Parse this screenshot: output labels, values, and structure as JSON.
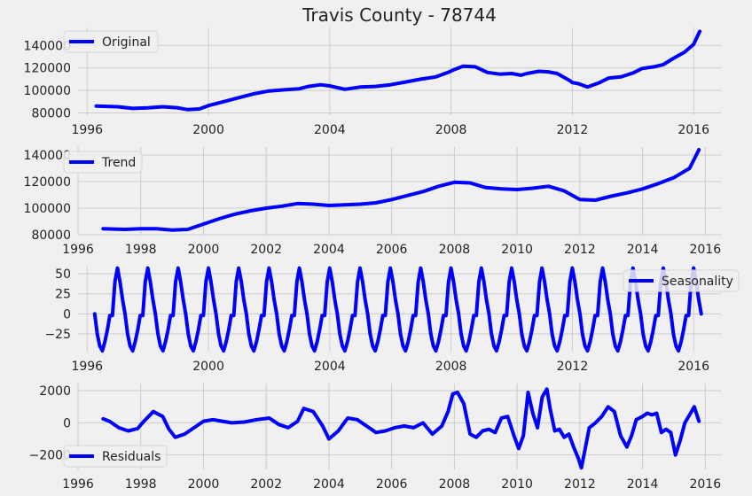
{
  "chart_data": [
    {
      "type": "line",
      "title": "Travis County - 78744",
      "legend": {
        "entries": [
          "Original"
        ],
        "placement": "upper-left"
      },
      "xlim": [
        1995.7,
        2016.9
      ],
      "ylim": [
        78000,
        156000
      ],
      "xticks": [
        1996,
        2000,
        2004,
        2008,
        2012,
        2016
      ],
      "yticks": [
        80000,
        100000,
        120000,
        140000
      ],
      "grid": true,
      "series": [
        {
          "name": "Original",
          "color": "#0000ff",
          "x": [
            1996.3,
            1997.0,
            1997.5,
            1998.0,
            1998.5,
            1999.0,
            1999.3,
            1999.7,
            2000.0,
            2000.5,
            2001.0,
            2001.5,
            2002.0,
            2002.5,
            2003.0,
            2003.3,
            2003.7,
            2004.0,
            2004.5,
            2005.0,
            2005.5,
            2006.0,
            2006.5,
            2007.0,
            2007.5,
            2007.9,
            2008.1,
            2008.4,
            2008.8,
            2009.2,
            2009.6,
            2010.0,
            2010.3,
            2010.5,
            2010.9,
            2011.2,
            2011.5,
            2011.9,
            2012.0,
            2012.2,
            2012.5,
            2012.9,
            2013.2,
            2013.6,
            2014.0,
            2014.3,
            2014.7,
            2015.0,
            2015.3,
            2015.7,
            2016.0,
            2016.2
          ],
          "values": [
            86000,
            85500,
            84000,
            84500,
            85500,
            84500,
            83000,
            83500,
            86500,
            90000,
            93500,
            97000,
            99500,
            100500,
            101500,
            103500,
            105000,
            104000,
            101000,
            103000,
            103500,
            105000,
            107500,
            110000,
            112000,
            116000,
            118500,
            121500,
            121000,
            116000,
            114500,
            115000,
            113500,
            115000,
            117000,
            116500,
            115000,
            109000,
            107000,
            106000,
            103000,
            107000,
            111000,
            112000,
            115500,
            119500,
            121000,
            123000,
            128000,
            134000,
            141000,
            152500
          ]
        }
      ]
    },
    {
      "type": "line",
      "legend": {
        "entries": [
          "Trend"
        ],
        "placement": "upper-left"
      },
      "xlim": [
        1996,
        2016.5
      ],
      "ylim": [
        80000,
        146000
      ],
      "xticks": [
        1996,
        1998,
        2000,
        2002,
        2004,
        2006,
        2008,
        2010,
        2012,
        2014,
        2016
      ],
      "yticks": [
        80000,
        100000,
        120000,
        140000
      ],
      "grid": true,
      "series": [
        {
          "name": "Trend",
          "color": "#0000ff",
          "x": [
            1996.8,
            1997.5,
            1998.0,
            1998.5,
            1999.0,
            1999.5,
            2000.0,
            2000.5,
            2001.0,
            2001.5,
            2002.0,
            2002.5,
            2003.0,
            2003.5,
            2004.0,
            2004.5,
            2005.0,
            2005.5,
            2006.0,
            2006.5,
            2007.0,
            2007.5,
            2008.0,
            2008.5,
            2009.0,
            2009.5,
            2010.0,
            2010.5,
            2011.0,
            2011.5,
            2012.0,
            2012.5,
            2013.0,
            2013.5,
            2014.0,
            2014.5,
            2015.0,
            2015.5,
            2015.8
          ],
          "values": [
            84500,
            84000,
            84500,
            84500,
            83500,
            84000,
            88000,
            92000,
            95500,
            98000,
            100000,
            101500,
            103500,
            103000,
            102000,
            102500,
            103000,
            104000,
            106500,
            109500,
            112500,
            116500,
            119500,
            119000,
            115500,
            114500,
            114000,
            115000,
            116500,
            113000,
            106500,
            106000,
            109000,
            111500,
            114500,
            118500,
            123000,
            130000,
            144000
          ]
        }
      ]
    },
    {
      "type": "line",
      "legend": {
        "entries": [
          "Seasonality"
        ],
        "placement": "upper-right"
      },
      "xlim": [
        1995.7,
        2016.9
      ],
      "ylim": [
        -47,
        60
      ],
      "xticks": [
        1996,
        2000,
        2004,
        2008,
        2012,
        2016
      ],
      "yticks": [
        -25,
        0,
        25,
        50
      ],
      "grid": true,
      "series": [
        {
          "name": "Seasonality",
          "color": "#0000ff",
          "start": 1996.25,
          "end": 2016.25,
          "period": 1,
          "pattern": [
            0,
            -25,
            -40,
            -46,
            -35,
            -20,
            -2,
            -2,
            40,
            57,
            40,
            18
          ]
        }
      ]
    },
    {
      "type": "line",
      "legend": {
        "entries": [
          "Residuals"
        ],
        "placement": "lower-left"
      },
      "xlim": [
        1996,
        2016.5
      ],
      "ylim": [
        -2900,
        2450
      ],
      "xticks": [
        1996,
        1998,
        2000,
        2002,
        2004,
        2006,
        2008,
        2010,
        2012,
        2014,
        2016
      ],
      "yticks": [
        -2000,
        0,
        2000
      ],
      "grid": true,
      "series": [
        {
          "name": "Residuals",
          "color": "#0000ff",
          "x": [
            1996.8,
            1997.0,
            1997.3,
            1997.6,
            1997.9,
            1998.1,
            1998.4,
            1998.7,
            1998.9,
            1999.1,
            1999.4,
            1999.7,
            2000.0,
            2000.3,
            2000.6,
            2000.9,
            2001.3,
            2001.7,
            2002.1,
            2002.4,
            2002.7,
            2003.0,
            2003.2,
            2003.5,
            2003.8,
            2004.0,
            2004.3,
            2004.6,
            2004.9,
            2005.2,
            2005.5,
            2005.8,
            2006.1,
            2006.4,
            2006.7,
            2007.0,
            2007.3,
            2007.6,
            2007.8,
            2007.95,
            2008.1,
            2008.3,
            2008.5,
            2008.7,
            2008.9,
            2009.1,
            2009.3,
            2009.5,
            2009.7,
            2009.9,
            2010.05,
            2010.2,
            2010.35,
            2010.5,
            2010.65,
            2010.8,
            2010.95,
            2011.05,
            2011.2,
            2011.35,
            2011.5,
            2011.65,
            2011.8,
            2011.95,
            2012.05,
            2012.15,
            2012.3,
            2012.5,
            2012.7,
            2012.9,
            2013.1,
            2013.3,
            2013.5,
            2013.65,
            2013.8,
            2014.0,
            2014.15,
            2014.3,
            2014.45,
            2014.6,
            2014.75,
            2014.9,
            2015.05,
            2015.2,
            2015.35,
            2015.5,
            2015.65,
            2015.8
          ],
          "values": [
            250,
            100,
            -300,
            -500,
            -350,
            100,
            700,
            400,
            -400,
            -900,
            -700,
            -300,
            100,
            200,
            100,
            0,
            50,
            200,
            300,
            -100,
            -300,
            100,
            900,
            700,
            -200,
            -1000,
            -500,
            300,
            200,
            -200,
            -600,
            -500,
            -300,
            -200,
            -300,
            0,
            -700,
            -200,
            700,
            1800,
            1900,
            1200,
            -700,
            -900,
            -500,
            -400,
            -600,
            300,
            400,
            -800,
            -1600,
            -800,
            1900,
            600,
            -300,
            1600,
            2100,
            900,
            -500,
            -400,
            -900,
            -700,
            -1500,
            -2200,
            -2800,
            -1800,
            -300,
            0,
            400,
            1000,
            700,
            -800,
            -1500,
            -800,
            200,
            400,
            600,
            500,
            600,
            -600,
            -400,
            -600,
            -2000,
            -1100,
            0,
            500,
            1000,
            100
          ]
        }
      ]
    }
  ]
}
